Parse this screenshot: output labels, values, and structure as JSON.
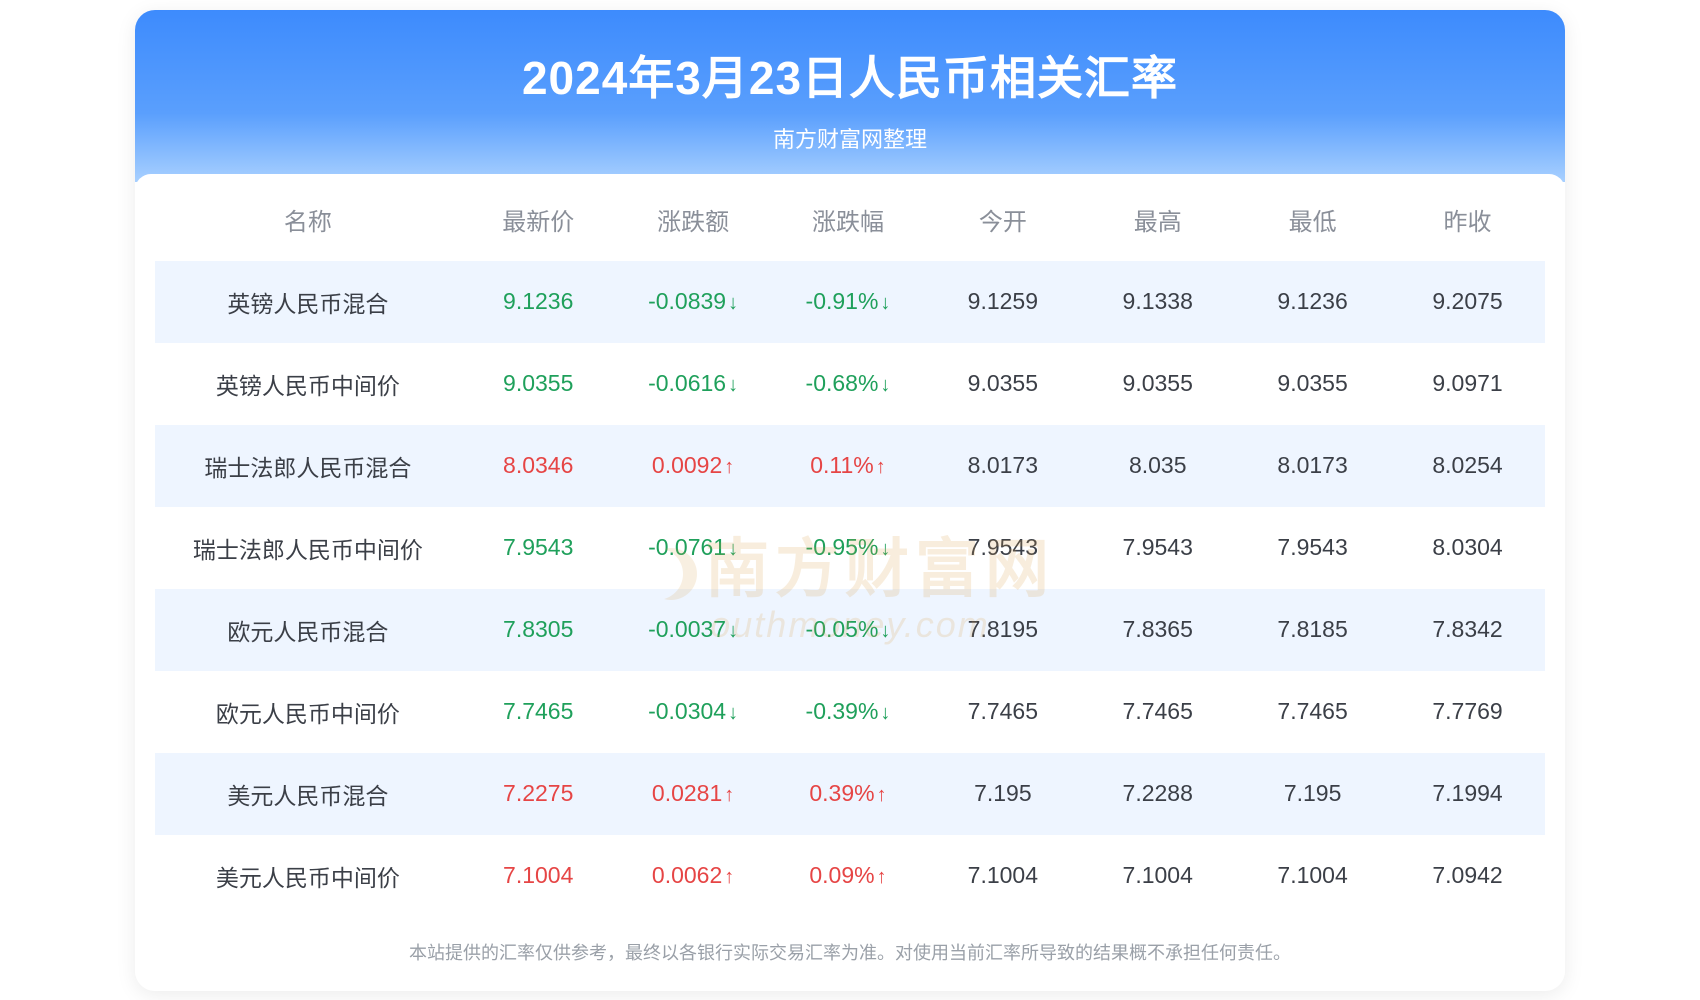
{
  "header": {
    "title": "2024年3月23日人民币相关汇率",
    "subtitle": "南方财富网整理"
  },
  "columns": [
    "名称",
    "最新价",
    "涨跌额",
    "涨跌幅",
    "今开",
    "最高",
    "最低",
    "昨收"
  ],
  "colors": {
    "up": "#e64545",
    "down": "#1fa05b",
    "header_grad_top": "#3d8bfd",
    "header_grad_bot": "#a8d0ff",
    "stripe_bg": "#eef5ff",
    "th_color": "#8a8f99",
    "td_color": "#3b3f47",
    "footer_color": "#9aa0a8",
    "watermark_color": "#d9a04a"
  },
  "typography": {
    "title_fontsize": 46,
    "subtitle_fontsize": 22,
    "th_fontsize": 24,
    "td_fontsize": 23,
    "footer_fontsize": 18
  },
  "arrows": {
    "up": "↑",
    "down": "↓"
  },
  "rows": [
    {
      "name": "英镑人民币混合",
      "latest": "9.1236",
      "change": "-0.0839",
      "pct": "-0.91%",
      "dir": "down",
      "open": "9.1259",
      "high": "9.1338",
      "low": "9.1236",
      "prev": "9.2075"
    },
    {
      "name": "英镑人民币中间价",
      "latest": "9.0355",
      "change": "-0.0616",
      "pct": "-0.68%",
      "dir": "down",
      "open": "9.0355",
      "high": "9.0355",
      "low": "9.0355",
      "prev": "9.0971"
    },
    {
      "name": "瑞士法郎人民币混合",
      "latest": "8.0346",
      "change": "0.0092",
      "pct": "0.11%",
      "dir": "up",
      "open": "8.0173",
      "high": "8.035",
      "low": "8.0173",
      "prev": "8.0254"
    },
    {
      "name": "瑞士法郎人民币中间价",
      "latest": "7.9543",
      "change": "-0.0761",
      "pct": "-0.95%",
      "dir": "down",
      "open": "7.9543",
      "high": "7.9543",
      "low": "7.9543",
      "prev": "8.0304"
    },
    {
      "name": "欧元人民币混合",
      "latest": "7.8305",
      "change": "-0.0037",
      "pct": "-0.05%",
      "dir": "down",
      "open": "7.8195",
      "high": "7.8365",
      "low": "7.8185",
      "prev": "7.8342"
    },
    {
      "name": "欧元人民币中间价",
      "latest": "7.7465",
      "change": "-0.0304",
      "pct": "-0.39%",
      "dir": "down",
      "open": "7.7465",
      "high": "7.7465",
      "low": "7.7465",
      "prev": "7.7769"
    },
    {
      "name": "美元人民币混合",
      "latest": "7.2275",
      "change": "0.0281",
      "pct": "0.39%",
      "dir": "up",
      "open": "7.195",
      "high": "7.2288",
      "low": "7.195",
      "prev": "7.1994"
    },
    {
      "name": "美元人民币中间价",
      "latest": "7.1004",
      "change": "0.0062",
      "pct": "0.09%",
      "dir": "up",
      "open": "7.1004",
      "high": "7.1004",
      "low": "7.1004",
      "prev": "7.0942"
    }
  ],
  "footer": "本站提供的汇率仅供参考，最终以各银行实际交易汇率为准。对使用当前汇率所导致的结果概不承担任何责任。",
  "watermark": {
    "cn": "南方财富网",
    "en": "outhmoney.com"
  }
}
